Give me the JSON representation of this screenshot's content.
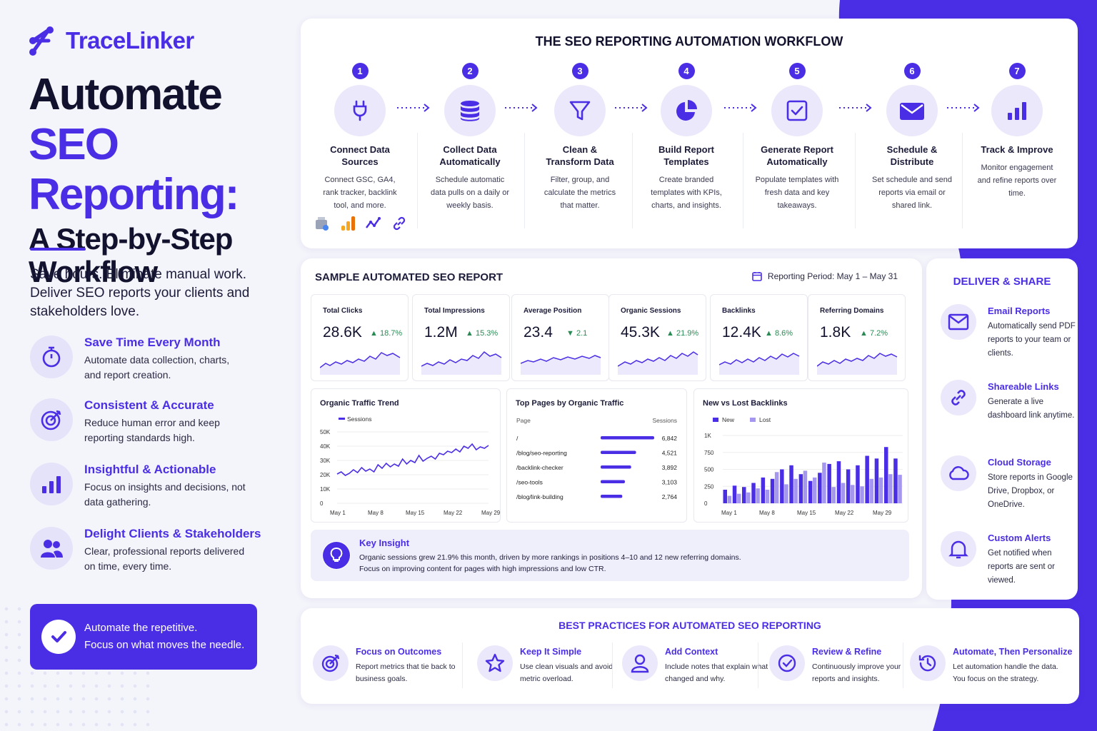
{
  "brand": {
    "name": "TraceLinker"
  },
  "hero": {
    "line1": "Automate",
    "line2": "SEO Reporting:",
    "line3": "A Step-by-Step",
    "line4": "Workflow",
    "tagline": "Save hours. Eliminate manual work. Deliver SEO reports your clients and stakeholders love."
  },
  "benefits": [
    {
      "icon": "stopwatch-icon",
      "title": "Save Time Every Month",
      "text": "Automate data collection, charts, and report creation."
    },
    {
      "icon": "target-icon",
      "title": "Consistent & Accurate",
      "text": "Reduce human error and keep reporting standards high."
    },
    {
      "icon": "bar-chart-icon",
      "title": "Insightful & Actionable",
      "text": "Focus on insights and decisions, not data gathering."
    },
    {
      "icon": "users-icon",
      "title": "Delight Clients & Stakeholders",
      "text": "Clear, professional reports delivered on time, every time."
    }
  ],
  "cta": {
    "line1": "Automate the repetitive.",
    "line2": "Focus on what moves the needle."
  },
  "workflow": {
    "title": "THE SEO REPORTING AUTOMATION WORKFLOW",
    "steps": [
      {
        "num": "1",
        "icon": "plug-icon",
        "title": "Connect Data Sources",
        "text": "Connect GSC, GA4, rank tracker, backlink tool, and more."
      },
      {
        "num": "2",
        "icon": "database-icon",
        "title": "Collect Data Automatically",
        "text": "Schedule automatic data pulls on a daily or weekly basis."
      },
      {
        "num": "3",
        "icon": "filter-icon",
        "title": "Clean & Transform Data",
        "text": "Filter, group, and calculate the metrics that matter."
      },
      {
        "num": "4",
        "icon": "pie-chart-icon",
        "title": "Build Report Templates",
        "text": "Create branded templates with KPIs, charts, and insights."
      },
      {
        "num": "5",
        "icon": "checkbox-icon",
        "title": "Generate Report Automatically",
        "text": "Populate templates with fresh data and key takeaways."
      },
      {
        "num": "6",
        "icon": "envelope-icon",
        "title": "Schedule & Distribute",
        "text": "Set schedule and send reports via email or shared link."
      },
      {
        "num": "7",
        "icon": "bar-chart-icon",
        "title": "Track & Improve",
        "text": "Monitor engagement and refine reports over time."
      }
    ]
  },
  "report": {
    "title": "SAMPLE AUTOMATED SEO REPORT",
    "period": "Reporting Period: May 1 – May 31",
    "kpis": [
      {
        "label": "Total Clicks",
        "value": "28.6K",
        "change": "18.7%",
        "dir": "up"
      },
      {
        "label": "Total Impressions",
        "value": "1.2M",
        "change": "15.3%",
        "dir": "up"
      },
      {
        "label": "Average Position",
        "value": "23.4",
        "change": "2.1",
        "dir": "down"
      },
      {
        "label": "Organic Sessions",
        "value": "45.3K",
        "change": "21.9%",
        "dir": "up"
      },
      {
        "label": "Backlinks",
        "value": "12.4K",
        "change": "8.6%",
        "dir": "up"
      },
      {
        "label": "Referring Domains",
        "value": "1.8K",
        "change": "7.2%",
        "dir": "up"
      }
    ],
    "insight": {
      "title": "Key Insight",
      "line1": "Organic sessions grew 21.9% this month, driven by more rankings in positions 4–10 and 12 new referring domains.",
      "line2": "Focus on improving content for pages with high impressions and low CTR."
    }
  },
  "chart_data": [
    {
      "type": "line",
      "title": "Organic Traffic Trend",
      "series": [
        {
          "name": "Sessions",
          "values": [
            20500,
            22000,
            19500,
            21000,
            23500,
            21500,
            25000,
            22500,
            24000,
            22000,
            27000,
            24500,
            28000,
            25500,
            27500,
            26000,
            31000,
            27500,
            30000,
            28500,
            33500,
            29500,
            31500,
            33000,
            31000,
            35000,
            34000,
            36500,
            35500,
            38000,
            36000,
            40000,
            38500,
            41500,
            37500,
            39500,
            38500,
            40500
          ]
        }
      ],
      "x_ticks": [
        "May 1",
        "May 8",
        "May 15",
        "May 22",
        "May 29"
      ],
      "y_ticks": [
        "0",
        "10K",
        "20K",
        "30K",
        "40K",
        "50K"
      ],
      "ylim": [
        0,
        50000
      ]
    },
    {
      "type": "bar",
      "title": "Top Pages by Organic Traffic",
      "col_page": "Page",
      "col_sessions": "Sessions",
      "categories": [
        "/",
        "/blog/seo-reporting",
        "/backlink-checker",
        "/seo-tools",
        "/blog/link-building"
      ],
      "values": [
        6842,
        4521,
        3892,
        3103,
        2764
      ],
      "labels": [
        "6,842",
        "4,521",
        "3,892",
        "3,103",
        "2,764"
      ]
    },
    {
      "type": "bar",
      "title": "New vs Lost Backlinks",
      "series": [
        {
          "name": "New",
          "values": [
            200,
            260,
            240,
            300,
            380,
            360,
            500,
            560,
            430,
            330,
            450,
            580,
            620,
            500,
            560,
            700,
            660,
            830,
            660
          ]
        },
        {
          "name": "Lost",
          "values": [
            110,
            140,
            160,
            220,
            200,
            460,
            280,
            360,
            480,
            380,
            600,
            240,
            300,
            270,
            250,
            360,
            380,
            430,
            420
          ]
        }
      ],
      "x_ticks": [
        "May 1",
        "May 8",
        "May 15",
        "May 22",
        "May 29"
      ],
      "y_ticks": [
        "0",
        "250",
        "500",
        "750",
        "1K"
      ],
      "ylim": [
        0,
        1000
      ]
    }
  ],
  "deliver": {
    "title": "DELIVER & SHARE",
    "items": [
      {
        "icon": "envelope-icon",
        "title": "Email Reports",
        "text": "Automatically send PDF reports to your team or clients."
      },
      {
        "icon": "link-icon",
        "title": "Shareable Links",
        "text": "Generate a live dashboard link anytime."
      },
      {
        "icon": "cloud-icon",
        "title": "Cloud Storage",
        "text": "Store reports in Google Drive, Dropbox, or OneDrive."
      },
      {
        "icon": "bell-icon",
        "title": "Custom Alerts",
        "text": "Get notified when reports are sent or viewed."
      }
    ]
  },
  "best": {
    "title": "BEST PRACTICES FOR AUTOMATED SEO REPORTING",
    "items": [
      {
        "icon": "target-icon",
        "title": "Focus on Outcomes",
        "text": "Report metrics that tie back to business goals."
      },
      {
        "icon": "star-icon",
        "title": "Keep It Simple",
        "text": "Use clean visuals and avoid metric overload."
      },
      {
        "icon": "user-icon",
        "title": "Add Context",
        "text": "Include notes that explain what changed and why."
      },
      {
        "icon": "check-badge-icon",
        "title": "Review & Refine",
        "text": "Continuously improve your reports and insights."
      },
      {
        "icon": "history-icon",
        "title": "Automate, Then Personalize",
        "text": "Let automation handle the data. You focus on the strategy."
      }
    ]
  },
  "colors": {
    "accent": "#4a2ee6",
    "positive": "#2a8a54",
    "lost": "#a596f0"
  }
}
